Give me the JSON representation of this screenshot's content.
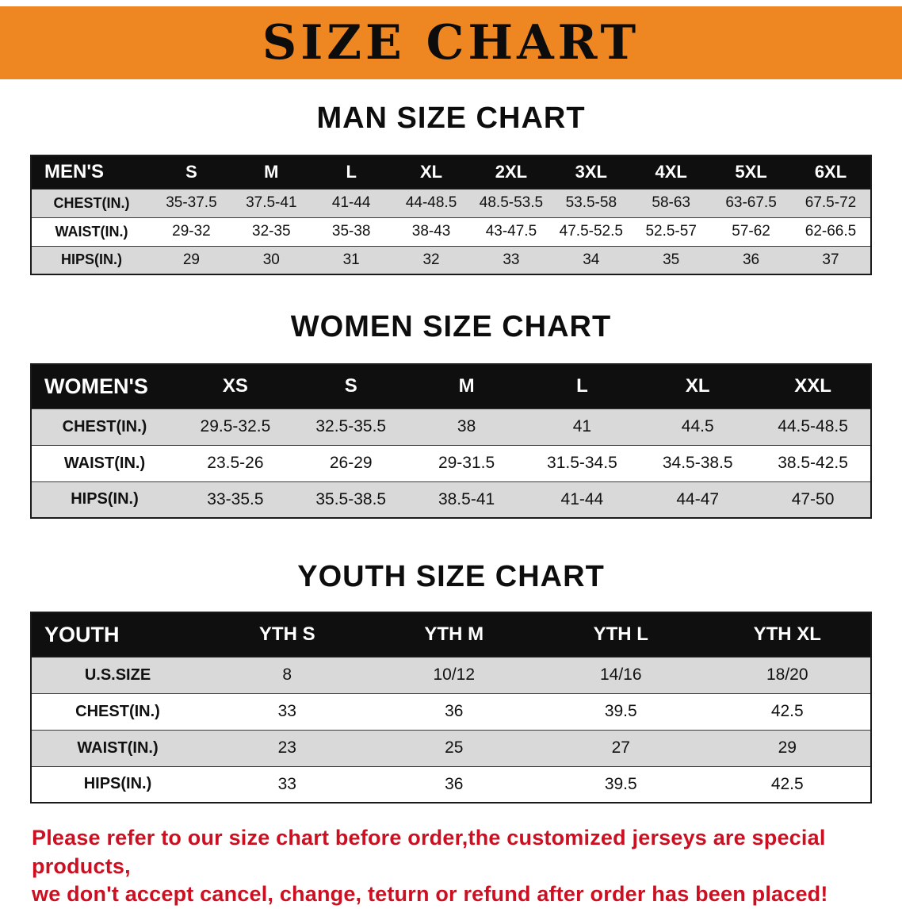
{
  "colors": {
    "banner_bg": "#EE8722",
    "header_black": "#0F0F0F",
    "row_grey": "#D9D9D9",
    "notice_red": "#CC1022"
  },
  "banner": {
    "title": "SIZE CHART"
  },
  "men": {
    "heading": "MAN SIZE CHART",
    "table": {
      "header": [
        "MEN'S",
        "S",
        "M",
        "L",
        "XL",
        "2XL",
        "3XL",
        "4XL",
        "5XL",
        "6XL"
      ],
      "rows": [
        {
          "label": "CHEST(IN.)",
          "values": [
            "35-37.5",
            "37.5-41",
            "41-44",
            "44-48.5",
            "48.5-53.5",
            "53.5-58",
            "58-63",
            "63-67.5",
            "67.5-72"
          ]
        },
        {
          "label": "WAIST(IN.)",
          "values": [
            "29-32",
            "32-35",
            "35-38",
            "38-43",
            "43-47.5",
            "47.5-52.5",
            "52.5-57",
            "57-62",
            "62-66.5"
          ]
        },
        {
          "label": "HIPS(IN.)",
          "values": [
            "29",
            "30",
            "31",
            "32",
            "33",
            "34",
            "35",
            "36",
            "37"
          ]
        }
      ]
    }
  },
  "women": {
    "heading": "WOMEN SIZE CHART",
    "table": {
      "header": [
        "WOMEN'S",
        "XS",
        "S",
        "M",
        "L",
        "XL",
        "XXL"
      ],
      "rows": [
        {
          "label": "CHEST(IN.)",
          "values": [
            "29.5-32.5",
            "32.5-35.5",
            "38",
            "41",
            "44.5",
            "44.5-48.5"
          ]
        },
        {
          "label": "WAIST(IN.)",
          "values": [
            "23.5-26",
            "26-29",
            "29-31.5",
            "31.5-34.5",
            "34.5-38.5",
            "38.5-42.5"
          ]
        },
        {
          "label": "HIPS(IN.)",
          "values": [
            "33-35.5",
            "35.5-38.5",
            "38.5-41",
            "41-44",
            "44-47",
            "47-50"
          ]
        }
      ]
    }
  },
  "youth": {
    "heading": "YOUTH SIZE CHART",
    "table": {
      "header": [
        "YOUTH",
        "YTH S",
        "YTH M",
        "YTH L",
        "YTH XL"
      ],
      "rows": [
        {
          "label": "U.S.SIZE",
          "values": [
            "8",
            "10/12",
            "14/16",
            "18/20"
          ]
        },
        {
          "label": "CHEST(IN.)",
          "values": [
            "33",
            "36",
            "39.5",
            "42.5"
          ]
        },
        {
          "label": "WAIST(IN.)",
          "values": [
            "23",
            "25",
            "27",
            "29"
          ]
        },
        {
          "label": "HIPS(IN.)",
          "values": [
            "33",
            "36",
            "39.5",
            "42.5"
          ]
        }
      ]
    }
  },
  "notice": {
    "line1": "Please refer to our size chart before order,the customized jerseys are special products,",
    "line2": "we don't accept cancel, change, teturn or refund after order has been placed!"
  }
}
